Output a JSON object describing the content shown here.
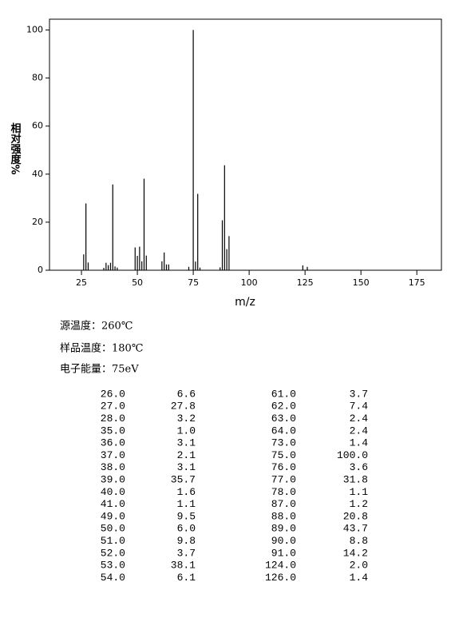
{
  "chart_data": {
    "type": "bar",
    "xlabel": "m/z",
    "ylabel": "相对强度%",
    "x": [
      26,
      27,
      28,
      35,
      36,
      37,
      38,
      39,
      40,
      41,
      49,
      50,
      51,
      52,
      53,
      54,
      61,
      62,
      63,
      64,
      73,
      75,
      76,
      77,
      78,
      87,
      88,
      89,
      90,
      91,
      124,
      126
    ],
    "values": [
      6.6,
      27.8,
      3.2,
      1.0,
      3.1,
      2.1,
      3.1,
      35.7,
      1.6,
      1.1,
      9.5,
      6.0,
      9.8,
      3.7,
      38.1,
      6.1,
      3.7,
      7.4,
      2.4,
      2.4,
      1.4,
      100,
      3.6,
      31.8,
      1.1,
      1.2,
      20.8,
      43.7,
      8.8,
      14.2,
      2.0,
      1.4
    ],
    "color": "#000000",
    "xlim": [
      10.7,
      186
    ],
    "xticks": [
      25,
      50,
      75,
      100,
      125,
      150,
      175
    ],
    "ylim": [
      0,
      104.5
    ],
    "yticks": [
      0,
      20,
      40,
      60,
      80,
      100
    ]
  },
  "info": [
    "源温度：260℃",
    "样品温度：180℃",
    "电子能量：75eV"
  ],
  "table": {
    "rows": [
      [
        "26.0",
        "6.6",
        "61.0",
        "3.7"
      ],
      [
        "27.0",
        "27.8",
        "62.0",
        "7.4"
      ],
      [
        "28.0",
        "3.2",
        "63.0",
        "2.4"
      ],
      [
        "35.0",
        "1.0",
        "64.0",
        "2.4"
      ],
      [
        "36.0",
        "3.1",
        "73.0",
        "1.4"
      ],
      [
        "37.0",
        "2.1",
        "75.0",
        "100.0"
      ],
      [
        "38.0",
        "3.1",
        "76.0",
        "3.6"
      ],
      [
        "39.0",
        "35.7",
        "77.0",
        "31.8"
      ],
      [
        "40.0",
        "1.6",
        "78.0",
        "1.1"
      ],
      [
        "41.0",
        "1.1",
        "87.0",
        "1.2"
      ],
      [
        "49.0",
        "9.5",
        "88.0",
        "20.8"
      ],
      [
        "50.0",
        "6.0",
        "89.0",
        "43.7"
      ],
      [
        "51.0",
        "9.8",
        "90.0",
        "8.8"
      ],
      [
        "52.0",
        "3.7",
        "91.0",
        "14.2"
      ],
      [
        "53.0",
        "38.1",
        "124.0",
        "2.0"
      ],
      [
        "54.0",
        "6.1",
        "126.0",
        "1.4"
      ]
    ]
  }
}
